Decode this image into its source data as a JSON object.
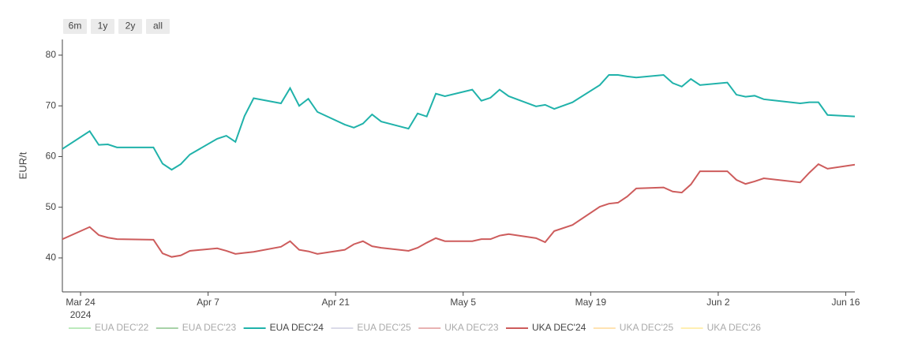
{
  "chart_data": {
    "type": "line",
    "range_buttons": [
      "6m",
      "1y",
      "2y",
      "all"
    ],
    "y_axis_label": "EUR/t",
    "x": [
      "2024-03-22",
      "2024-03-25",
      "2024-03-26",
      "2024-03-27",
      "2024-03-28",
      "2024-04-01",
      "2024-04-02",
      "2024-04-03",
      "2024-04-04",
      "2024-04-05",
      "2024-04-08",
      "2024-04-09",
      "2024-04-10",
      "2024-04-11",
      "2024-04-12",
      "2024-04-15",
      "2024-04-16",
      "2024-04-17",
      "2024-04-18",
      "2024-04-19",
      "2024-04-22",
      "2024-04-23",
      "2024-04-24",
      "2024-04-25",
      "2024-04-26",
      "2024-04-29",
      "2024-04-30",
      "2024-05-01",
      "2024-05-02",
      "2024-05-03",
      "2024-05-06",
      "2024-05-07",
      "2024-05-08",
      "2024-05-09",
      "2024-05-10",
      "2024-05-13",
      "2024-05-14",
      "2024-05-15",
      "2024-05-17",
      "2024-05-20",
      "2024-05-21",
      "2024-05-22",
      "2024-05-23",
      "2024-05-24",
      "2024-05-27",
      "2024-05-28",
      "2024-05-29",
      "2024-05-30",
      "2024-05-31",
      "2024-06-03",
      "2024-06-04",
      "2024-06-05",
      "2024-06-06",
      "2024-06-07",
      "2024-06-11",
      "2024-06-12",
      "2024-06-13",
      "2024-06-14",
      "2024-06-17"
    ],
    "xlim": [
      "2024-03-22",
      "2024-06-17"
    ],
    "xticks": [
      {
        "value": "2024-03-24",
        "label": "Mar 24"
      },
      {
        "value": "2024-04-07",
        "label": "Apr 7"
      },
      {
        "value": "2024-04-21",
        "label": "Apr 21"
      },
      {
        "value": "2024-05-05",
        "label": "May 5"
      },
      {
        "value": "2024-05-19",
        "label": "May 19"
      },
      {
        "value": "2024-06-02",
        "label": "Jun 2"
      },
      {
        "value": "2024-06-16",
        "label": "Jun 16"
      }
    ],
    "x_year_label": "2024",
    "ylim": [
      33.3,
      83.1
    ],
    "yticks": [
      40,
      50,
      60,
      70,
      80
    ],
    "series": [
      {
        "name": "EUA DEC'22",
        "color": "#90dd90",
        "visible": false
      },
      {
        "name": "EUA DEC'23",
        "color": "#6fb56f",
        "visible": false
      },
      {
        "name": "EUA DEC'24",
        "color": "#20b2aa",
        "visible": true,
        "values": [
          61.5,
          65.0,
          62.3,
          62.4,
          61.8,
          61.8,
          58.6,
          57.4,
          58.5,
          60.4,
          63.5,
          64.1,
          62.9,
          68.0,
          71.5,
          70.5,
          73.5,
          70.0,
          71.4,
          68.8,
          66.3,
          65.7,
          66.5,
          68.3,
          66.9,
          65.5,
          68.5,
          67.9,
          72.4,
          71.9,
          73.2,
          71.0,
          71.6,
          73.2,
          71.9,
          69.9,
          70.2,
          69.4,
          70.7,
          74.1,
          76.1,
          76.1,
          75.8,
          75.6,
          76.1,
          74.5,
          73.8,
          75.3,
          74.1,
          74.6,
          72.2,
          71.8,
          72.0,
          71.3,
          70.5,
          70.7,
          70.7,
          68.2,
          67.9
        ]
      },
      {
        "name": "EUA DEC'25",
        "color": "#c4c4dc",
        "visible": false
      },
      {
        "name": "UKA DEC'23",
        "color": "#d98080",
        "visible": false
      },
      {
        "name": "UKA DEC'24",
        "color": "#cd5c5c",
        "visible": true,
        "values": [
          43.7,
          46.1,
          44.5,
          44.0,
          43.7,
          43.6,
          40.9,
          40.2,
          40.5,
          41.4,
          41.9,
          41.4,
          40.8,
          41.0,
          41.2,
          42.2,
          43.3,
          41.6,
          41.3,
          40.8,
          41.6,
          42.7,
          43.3,
          42.3,
          42.0,
          41.4,
          42.0,
          43.0,
          43.9,
          43.3,
          43.3,
          43.7,
          43.7,
          44.4,
          44.7,
          43.9,
          43.1,
          45.3,
          46.5,
          50.1,
          50.7,
          50.9,
          52.1,
          53.7,
          53.9,
          53.1,
          52.9,
          54.5,
          57.1,
          57.1,
          55.4,
          54.6,
          55.1,
          55.7,
          54.9,
          56.8,
          58.5,
          57.6,
          58.4
        ]
      },
      {
        "name": "UKA DEC'25",
        "color": "#ffd27f",
        "visible": false
      },
      {
        "name": "UKA DEC'26",
        "color": "#ffe680",
        "visible": false
      }
    ]
  }
}
